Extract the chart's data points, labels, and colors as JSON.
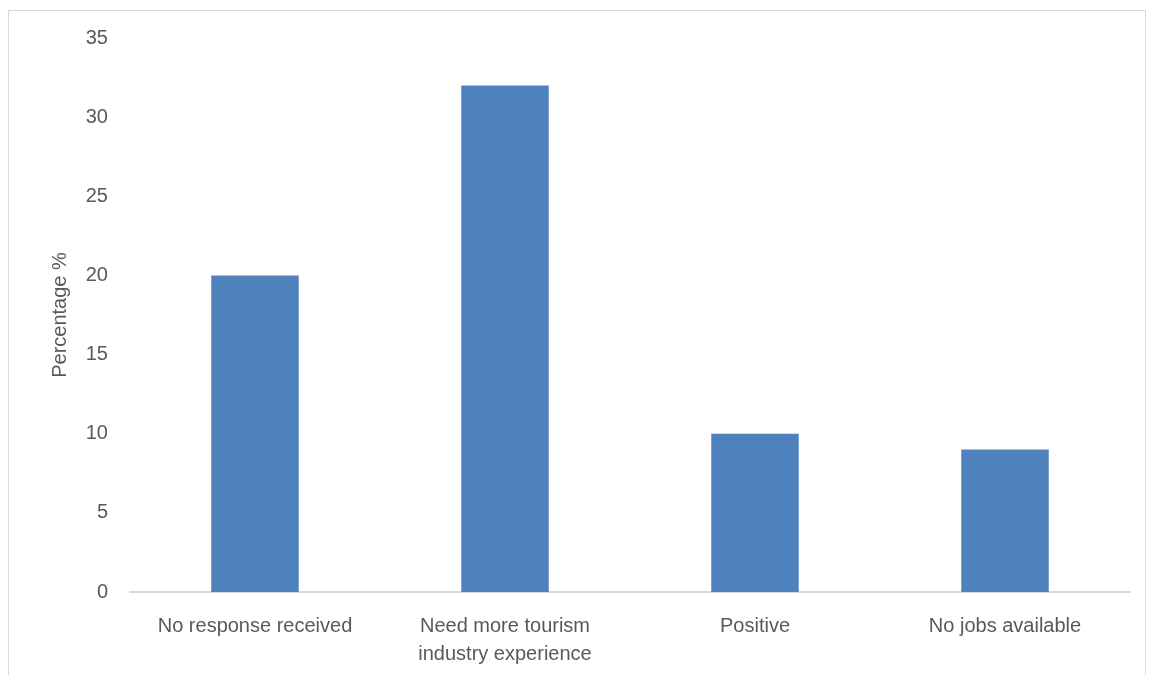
{
  "chart_data": {
    "type": "bar",
    "ylabel": "Percentage %",
    "categories": [
      "No response received",
      "Need more tourism industry experience",
      "Positive",
      "No jobs available"
    ],
    "values": [
      20,
      32,
      10,
      9
    ],
    "color": "#4f81bd",
    "ylim": [
      0,
      35
    ],
    "yticks": [
      0,
      5,
      10,
      15,
      20,
      25,
      30,
      35
    ]
  }
}
